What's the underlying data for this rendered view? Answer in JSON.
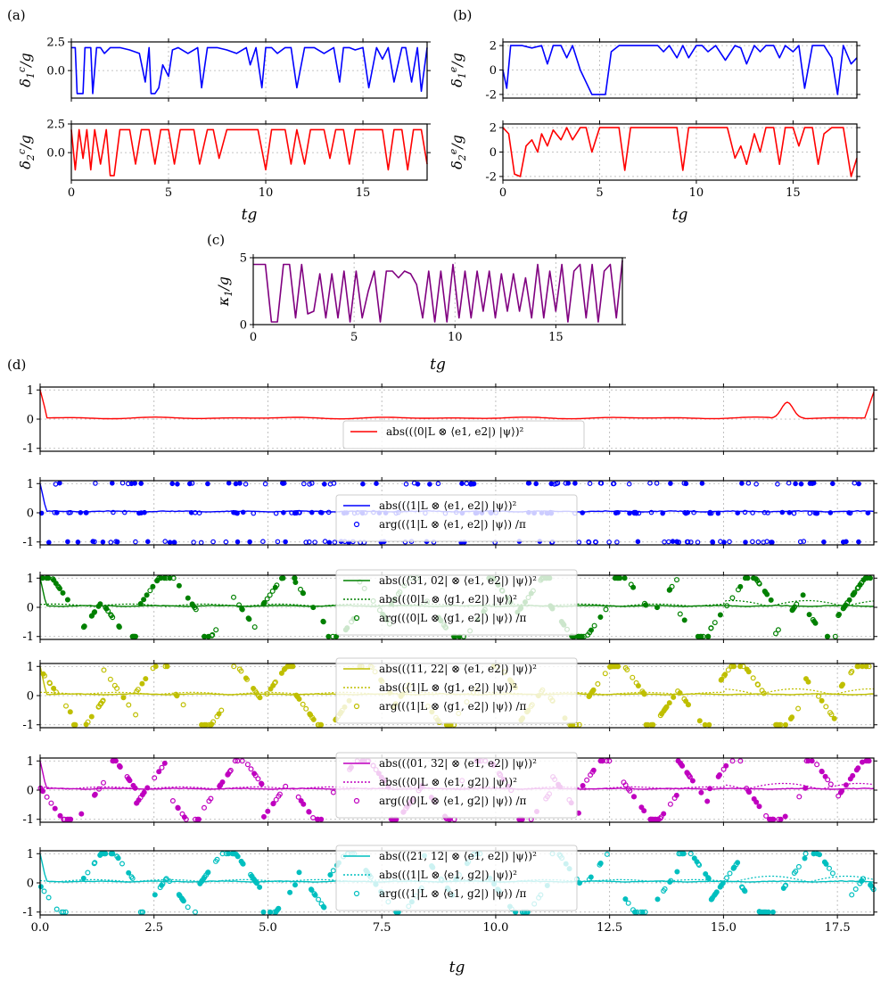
{
  "colors": {
    "red": "#ff0000",
    "blue": "#0000ff",
    "green": "#008000",
    "olive": "#bfbf00",
    "magenta": "#bf00bf",
    "cyan": "#00bfbf",
    "purple": "#800080"
  },
  "chart_data": [
    {
      "panel": "(a)",
      "type": "line",
      "xlabel": "tg",
      "xlim": [
        0,
        18.3
      ],
      "xticks": [
        "0",
        "5",
        "10",
        "15"
      ],
      "subplots": [
        {
          "ylabel": "δ1c/g",
          "ylim": [
            -2.4,
            2.5
          ],
          "yticks": [
            "2.5",
            "0.0"
          ],
          "series": [
            {
              "color": "blue",
              "x": [
                0,
                0.2,
                0.3,
                0.6,
                0.7,
                0.8,
                1.0,
                1.1,
                1.3,
                1.5,
                1.7,
                2.0,
                2.2,
                2.5,
                3.0,
                3.5,
                3.8,
                4.0,
                4.1,
                4.3,
                4.5,
                4.7,
                5.0,
                5.2,
                5.5,
                6.0,
                6.5,
                6.7,
                7.0,
                7.2,
                7.5,
                8.0,
                8.5,
                9.0,
                9.2,
                9.5,
                9.8,
                10.0,
                10.3,
                10.6,
                11.0,
                11.3,
                11.6,
                12.0,
                12.5,
                13.0,
                13.5,
                13.8,
                14.0,
                14.3,
                14.6,
                15.0,
                15.3,
                15.7,
                16.0,
                16.3,
                16.6,
                17.0,
                17.2,
                17.5,
                17.8,
                18.0,
                18.3
              ],
              "y": [
                2.0,
                2.0,
                -2.0,
                -2.0,
                2.0,
                2.0,
                2.0,
                -2.0,
                2.0,
                2.0,
                1.5,
                2.0,
                2.0,
                2.0,
                1.8,
                1.5,
                -1.0,
                2.0,
                -2.0,
                -2.0,
                -1.5,
                0.5,
                -0.5,
                1.8,
                2.0,
                1.5,
                2.0,
                -1.5,
                2.0,
                2.0,
                2.0,
                1.8,
                1.5,
                2.0,
                0.5,
                2.0,
                -1.5,
                2.0,
                2.0,
                1.5,
                2.0,
                2.0,
                -1.5,
                2.0,
                2.0,
                1.5,
                2.0,
                -1.0,
                2.0,
                2.0,
                1.8,
                2.0,
                -1.5,
                2.0,
                1.0,
                2.0,
                -1.0,
                2.0,
                2.0,
                -1.0,
                2.0,
                -1.8,
                2.0
              ]
            }
          ]
        },
        {
          "ylabel": "δ2c/g",
          "ylim": [
            -2.4,
            2.5
          ],
          "yticks": [
            "2.5",
            "0.0"
          ],
          "series": [
            {
              "color": "red",
              "x": [
                0,
                0.2,
                0.4,
                0.6,
                0.8,
                1.0,
                1.2,
                1.5,
                1.8,
                2.0,
                2.2,
                2.5,
                2.8,
                3.0,
                3.3,
                3.6,
                4.0,
                4.3,
                4.6,
                5.0,
                5.3,
                5.6,
                6.0,
                6.3,
                6.6,
                7.0,
                7.3,
                7.6,
                8.0,
                8.3,
                8.6,
                9.0,
                9.3,
                9.6,
                10.0,
                10.3,
                10.6,
                11.0,
                11.3,
                11.6,
                12.0,
                12.3,
                12.6,
                13.0,
                13.3,
                13.6,
                14.0,
                14.3,
                14.6,
                15.0,
                15.3,
                15.6,
                16.0,
                16.3,
                16.6,
                17.0,
                17.3,
                17.6,
                18.0,
                18.3
              ],
              "y": [
                2.0,
                -1.5,
                2.0,
                -0.5,
                2.0,
                -1.5,
                2.0,
                -1.0,
                2.0,
                -2.0,
                -2.0,
                2.0,
                2.0,
                2.0,
                -1.0,
                2.0,
                2.0,
                -1.0,
                2.0,
                2.0,
                -1.0,
                2.0,
                2.0,
                2.0,
                -1.0,
                2.0,
                2.0,
                -0.5,
                2.0,
                2.0,
                2.0,
                2.0,
                2.0,
                2.0,
                -1.5,
                2.0,
                2.0,
                2.0,
                -1.0,
                2.0,
                -1.0,
                2.0,
                2.0,
                2.0,
                -0.5,
                2.0,
                2.0,
                -1.0,
                2.0,
                2.0,
                2.0,
                2.0,
                2.0,
                -1.5,
                2.0,
                2.0,
                -1.5,
                2.0,
                2.0,
                -1.0
              ]
            }
          ]
        }
      ]
    },
    {
      "panel": "(b)",
      "type": "line",
      "xlabel": "tg",
      "xlim": [
        0,
        18.3
      ],
      "xticks": [
        "0",
        "5",
        "10",
        "15"
      ],
      "subplots": [
        {
          "ylabel": "δ1e/g",
          "ylim": [
            -2.3,
            2.3
          ],
          "yticks": [
            "2",
            "0",
            "-2"
          ],
          "series": [
            {
              "color": "blue",
              "x": [
                0,
                0.2,
                0.4,
                0.7,
                1.0,
                1.5,
                2.0,
                2.3,
                2.6,
                3.0,
                3.3,
                3.6,
                4.0,
                4.3,
                4.6,
                5.0,
                5.3,
                5.6,
                6.0,
                6.3,
                6.6,
                7.0,
                7.5,
                8.0,
                8.3,
                8.6,
                9.0,
                9.3,
                9.6,
                10.0,
                10.3,
                10.6,
                11.0,
                11.5,
                12.0,
                12.3,
                12.6,
                13.0,
                13.3,
                13.6,
                14.0,
                14.3,
                14.6,
                15.0,
                15.3,
                15.6,
                16.0,
                16.3,
                16.6,
                17.0,
                17.3,
                17.6,
                18.0,
                18.3
              ],
              "y": [
                0.0,
                -1.5,
                2.0,
                2.0,
                2.0,
                1.8,
                2.0,
                0.5,
                2.0,
                2.0,
                1.0,
                2.0,
                0.0,
                -1.0,
                -2.0,
                -2.0,
                -2.0,
                1.5,
                2.0,
                2.0,
                2.0,
                2.0,
                2.0,
                2.0,
                1.5,
                2.0,
                1.0,
                2.0,
                1.0,
                2.0,
                2.0,
                1.5,
                2.0,
                0.8,
                2.0,
                1.8,
                0.5,
                2.0,
                1.5,
                2.0,
                2.0,
                1.0,
                2.0,
                1.5,
                2.0,
                -1.5,
                2.0,
                2.0,
                2.0,
                1.0,
                -2.0,
                2.0,
                0.5,
                1.0
              ]
            }
          ]
        },
        {
          "ylabel": "δ2e/g",
          "ylim": [
            -2.3,
            2.3
          ],
          "yticks": [
            "2",
            "0",
            "-2"
          ],
          "series": [
            {
              "color": "red",
              "x": [
                0,
                0.3,
                0.6,
                0.9,
                1.2,
                1.5,
                1.8,
                2.0,
                2.3,
                2.6,
                3.0,
                3.3,
                3.6,
                4.0,
                4.3,
                4.6,
                5.0,
                5.3,
                5.6,
                6.0,
                6.3,
                6.6,
                7.0,
                7.3,
                7.6,
                8.0,
                8.3,
                8.6,
                9.0,
                9.3,
                9.6,
                10.0,
                10.3,
                10.6,
                11.0,
                11.3,
                11.6,
                12.0,
                12.3,
                12.6,
                13.0,
                13.3,
                13.6,
                14.0,
                14.3,
                14.6,
                15.0,
                15.3,
                15.6,
                16.0,
                16.3,
                16.6,
                17.0,
                17.3,
                17.6,
                18.0,
                18.3
              ],
              "y": [
                2.0,
                1.5,
                -1.8,
                -2.0,
                0.5,
                1.0,
                0.0,
                1.5,
                0.5,
                1.8,
                1.0,
                2.0,
                1.0,
                2.0,
                2.0,
                0.0,
                2.0,
                2.0,
                2.0,
                2.0,
                -1.5,
                2.0,
                2.0,
                2.0,
                2.0,
                2.0,
                2.0,
                2.0,
                2.0,
                -1.5,
                2.0,
                2.0,
                2.0,
                2.0,
                2.0,
                2.0,
                2.0,
                -0.5,
                0.5,
                -1.0,
                1.5,
                0.0,
                2.0,
                2.0,
                -1.0,
                2.0,
                2.0,
                0.5,
                2.0,
                2.0,
                -1.0,
                1.5,
                2.0,
                2.0,
                2.0,
                -2.0,
                -0.5
              ]
            }
          ]
        }
      ]
    },
    {
      "panel": "(c)",
      "type": "line",
      "xlabel": "tg",
      "ylabel": "κ1/g",
      "xlim": [
        0,
        18.3
      ],
      "ylim": [
        0,
        5
      ],
      "xticks": [
        "0",
        "5",
        "10",
        "15"
      ],
      "yticks": [
        "5",
        "0"
      ],
      "series": [
        {
          "color": "purple",
          "x": [
            0,
            0.3,
            0.6,
            0.9,
            1.2,
            1.5,
            1.8,
            2.1,
            2.4,
            2.7,
            3.0,
            3.3,
            3.6,
            3.9,
            4.2,
            4.5,
            4.8,
            5.1,
            5.4,
            5.7,
            6.0,
            6.3,
            6.6,
            6.9,
            7.2,
            7.5,
            7.8,
            8.1,
            8.4,
            8.7,
            9.0,
            9.3,
            9.6,
            9.9,
            10.2,
            10.5,
            10.8,
            11.1,
            11.4,
            11.7,
            12.0,
            12.3,
            12.6,
            12.9,
            13.2,
            13.5,
            13.8,
            14.1,
            14.4,
            14.7,
            15.0,
            15.3,
            15.6,
            15.9,
            16.2,
            16.5,
            16.8,
            17.1,
            17.4,
            17.7,
            18.0,
            18.3
          ],
          "y": [
            4.5,
            4.5,
            4.5,
            0.2,
            0.2,
            4.5,
            4.5,
            0.5,
            4.5,
            0.8,
            1.0,
            3.8,
            0.5,
            3.8,
            0.5,
            4.0,
            0.2,
            4.0,
            0.5,
            2.5,
            4.0,
            0.2,
            4.0,
            4.0,
            3.5,
            4.0,
            3.8,
            3.0,
            0.5,
            4.0,
            0.2,
            4.0,
            0.2,
            4.5,
            0.5,
            4.0,
            0.5,
            4.0,
            1.0,
            4.0,
            0.5,
            3.8,
            1.0,
            3.8,
            1.0,
            3.5,
            0.5,
            4.5,
            0.5,
            4.0,
            1.0,
            4.5,
            0.2,
            4.0,
            4.5,
            0.5,
            4.5,
            0.2,
            4.0,
            4.5,
            0.5,
            4.8
          ]
        }
      ]
    },
    {
      "panel": "(d)",
      "type": "line",
      "xlabel": "tg",
      "xlim": [
        0,
        18.3
      ],
      "ylim": [
        -1.1,
        1.1
      ],
      "xticks": [
        "0.0",
        "2.5",
        "5.0",
        "7.5",
        "10.0",
        "12.5",
        "15.0",
        "17.5"
      ],
      "yticks": [
        "1",
        "0",
        "-1"
      ],
      "subplots": [
        {
          "legend": [
            "abs((⟨0|L ⊗ ⟨e1, e2|) |ψ⟩)²"
          ],
          "color": "red"
        },
        {
          "legend": [
            "abs((⟨1|L ⊗ ⟨e1, e2|) |ψ⟩)²",
            "arg((⟨1|L ⊗ ⟨e1, e2|) |ψ⟩) /π"
          ],
          "color": "blue"
        },
        {
          "legend": [
            "abs((⟨31, 02| ⊗ ⟨e1, e2|) |ψ⟩)²",
            "abs((⟨0|L ⊗ ⟨g1, e2|) |ψ⟩)²",
            "arg((⟨0|L ⊗ ⟨g1, e2|) |ψ⟩) /π"
          ],
          "color": "green"
        },
        {
          "legend": [
            "abs((⟨11, 22| ⊗ ⟨e1, e2|) |ψ⟩)²",
            "abs((⟨1|L ⊗ ⟨g1, e2|) |ψ⟩)²",
            "arg((⟨1|L ⊗ ⟨g1, e2|) |ψ⟩) /π"
          ],
          "color": "olive"
        },
        {
          "legend": [
            "abs((⟨01, 32| ⊗ ⟨e1, e2|) |ψ⟩)²",
            "abs((⟨0|L ⊗ ⟨e1, g2|) |ψ⟩)²",
            "arg((⟨0|L ⊗ ⟨e1, g2|) |ψ⟩) /π"
          ],
          "color": "magenta"
        },
        {
          "legend": [
            "abs((⟨21, 12| ⊗ ⟨e1, e2|) |ψ⟩)²",
            "abs((⟨1|L ⊗ ⟨e1, g2|) |ψ⟩)²",
            "arg((⟨1|L ⊗ ⟨e1, g2|) |ψ⟩) /π"
          ],
          "color": "cyan"
        }
      ]
    }
  ]
}
